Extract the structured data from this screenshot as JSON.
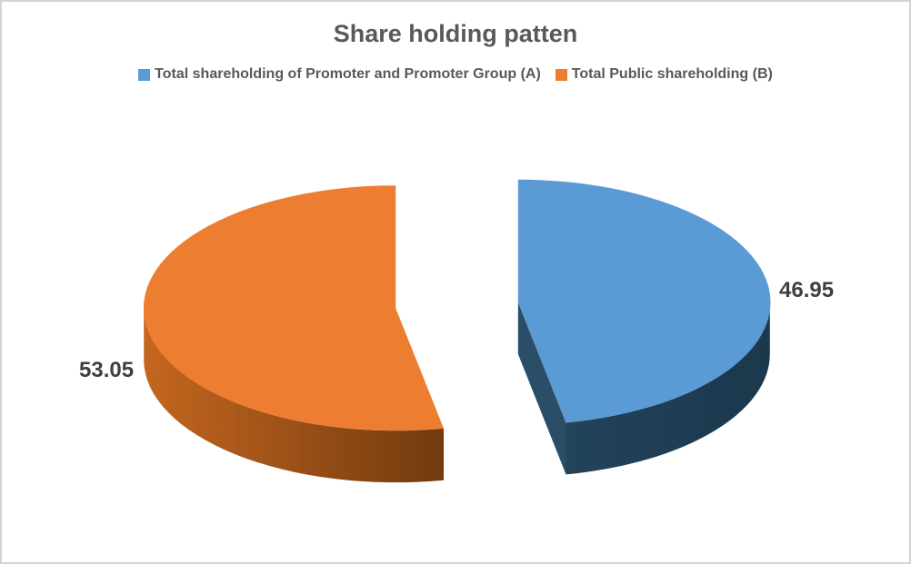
{
  "chart_data": {
    "type": "pie",
    "style": "3d-exploded",
    "title": "Share holding patten",
    "legend_position": "top",
    "direction": "clockwise",
    "start_angle_deg": 0,
    "background": "#ffffff",
    "border_color": "#d4d4d4",
    "title_color": "#595959",
    "data_label_color": "#3f3f3f",
    "series": [
      {
        "id": "promoter-group-a",
        "name": "Total shareholding of Promoter and Promoter Group (A)",
        "value": 46.95,
        "color": "#5b9bd5",
        "side": {
          "face": "#2b4e68",
          "from": "#2f5470",
          "to": "#1b384c"
        }
      },
      {
        "id": "public-b",
        "name": "Total Public shareholding (B)",
        "value": 53.05,
        "color": "#ed7d31",
        "side": {
          "face": "#a9541d",
          "from": "#c4661f",
          "to": "#3a1d04"
        }
      }
    ]
  }
}
